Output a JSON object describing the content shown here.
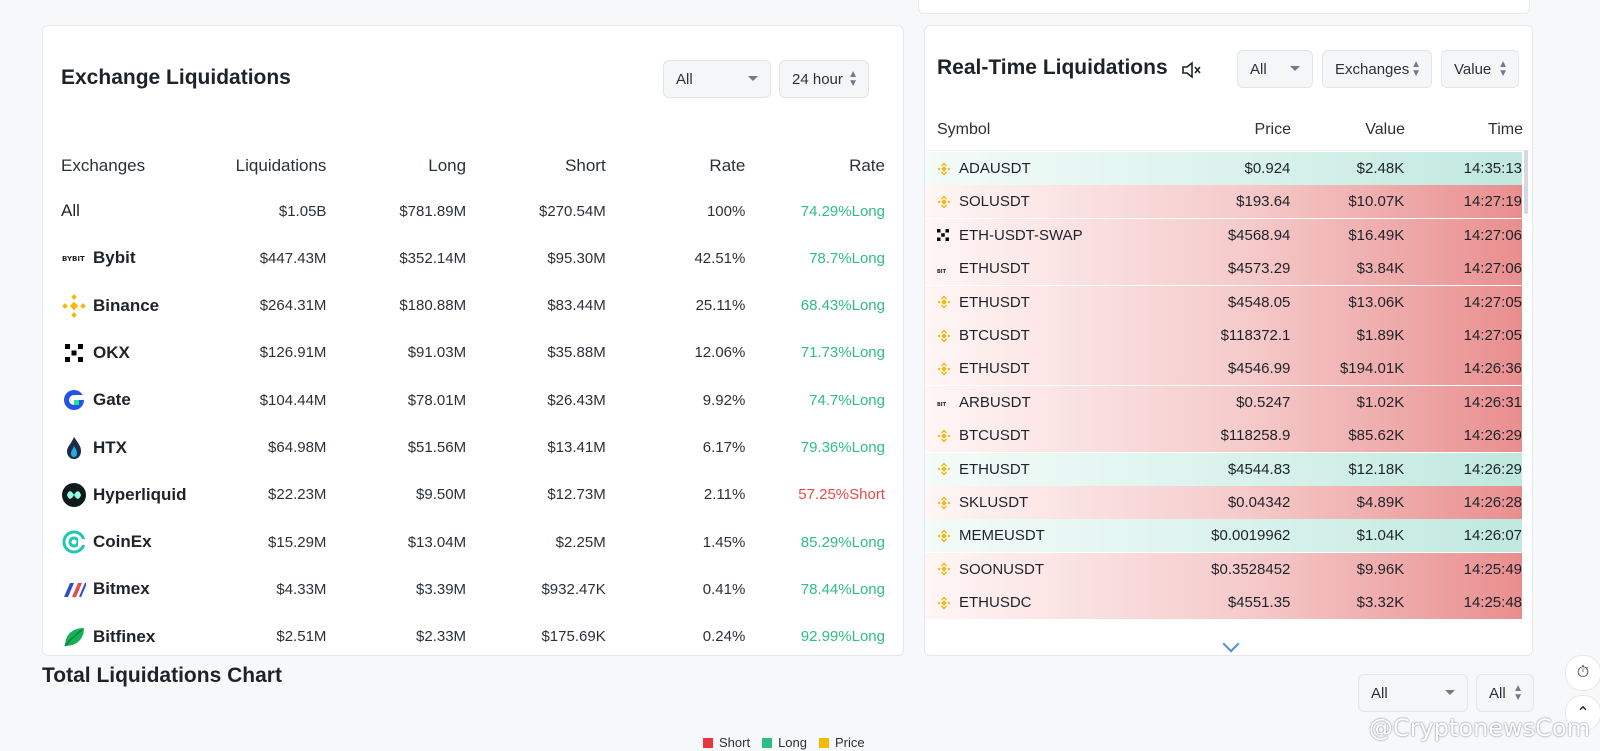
{
  "exchange": {
    "title": "Exchange Liquidations",
    "filter_value": "All",
    "period_value": "24 hour",
    "headers": [
      "Exchanges",
      "Liquidations",
      "Long",
      "Short",
      "Rate",
      "Rate"
    ],
    "rows": [
      {
        "name": "All",
        "liq": "$1.05B",
        "long": "$781.89M",
        "short": "$270.54M",
        "rate": "100%",
        "ratio": "74.29%Long",
        "side": "long",
        "logo": "none"
      },
      {
        "name": "Bybit",
        "liq": "$447.43M",
        "long": "$352.14M",
        "short": "$95.30M",
        "rate": "42.51%",
        "ratio": "78.7%Long",
        "side": "long",
        "logo": "bybit-logo"
      },
      {
        "name": "Binance",
        "liq": "$264.31M",
        "long": "$180.88M",
        "short": "$83.44M",
        "rate": "25.11%",
        "ratio": "68.43%Long",
        "side": "long",
        "logo": "binance-logo"
      },
      {
        "name": "OKX",
        "liq": "$126.91M",
        "long": "$91.03M",
        "short": "$35.88M",
        "rate": "12.06%",
        "ratio": "71.73%Long",
        "side": "long",
        "logo": "okx-logo"
      },
      {
        "name": "Gate",
        "liq": "$104.44M",
        "long": "$78.01M",
        "short": "$26.43M",
        "rate": "9.92%",
        "ratio": "74.7%Long",
        "side": "long",
        "logo": "gate-logo"
      },
      {
        "name": "HTX",
        "liq": "$64.98M",
        "long": "$51.56M",
        "short": "$13.41M",
        "rate": "6.17%",
        "ratio": "79.36%Long",
        "side": "long",
        "logo": "htx-logo"
      },
      {
        "name": "Hyperliquid",
        "liq": "$22.23M",
        "long": "$9.50M",
        "short": "$12.73M",
        "rate": "2.11%",
        "ratio": "57.25%Short",
        "side": "short",
        "logo": "hyperliquid-logo"
      },
      {
        "name": "CoinEx",
        "liq": "$15.29M",
        "long": "$13.04M",
        "short": "$2.25M",
        "rate": "1.45%",
        "ratio": "85.29%Long",
        "side": "long",
        "logo": "coinex-logo"
      },
      {
        "name": "Bitmex",
        "liq": "$4.33M",
        "long": "$3.39M",
        "short": "$932.47K",
        "rate": "0.41%",
        "ratio": "78.44%Long",
        "side": "long",
        "logo": "bitmex-logo"
      },
      {
        "name": "Bitfinex",
        "liq": "$2.51M",
        "long": "$2.33M",
        "short": "$175.69K",
        "rate": "0.24%",
        "ratio": "92.99%Long",
        "side": "long",
        "logo": "bitfinex-logo"
      }
    ]
  },
  "realtime": {
    "title": "Real-Time Liquidations",
    "filter_value": "All",
    "exchanges_label": "Exchanges",
    "value_label": "Value",
    "headers": [
      "Symbol",
      "Price",
      "Value",
      "Time"
    ],
    "rows": [
      {
        "symbol": "ADAUSDT",
        "price": "$0.924",
        "value": "$2.48K",
        "time": "14:35:13",
        "side": "long",
        "icon": "binance-icon"
      },
      {
        "symbol": "SOLUSDT",
        "price": "$193.64",
        "value": "$10.07K",
        "time": "14:27:19",
        "side": "short",
        "icon": "binance-icon"
      },
      {
        "symbol": "ETH-USDT-SWAP",
        "price": "$4568.94",
        "value": "$16.49K",
        "time": "14:27:06",
        "side": "short",
        "icon": "okx-icon"
      },
      {
        "symbol": "ETHUSDT",
        "price": "$4573.29",
        "value": "$3.84K",
        "time": "14:27:06",
        "side": "short",
        "icon": "bybit-icon"
      },
      {
        "symbol": "ETHUSDT",
        "price": "$4548.05",
        "value": "$13.06K",
        "time": "14:27:05",
        "side": "short",
        "icon": "binance-icon"
      },
      {
        "symbol": "BTCUSDT",
        "price": "$118372.1",
        "value": "$1.89K",
        "time": "14:27:05",
        "side": "short",
        "icon": "binance-icon"
      },
      {
        "symbol": "ETHUSDT",
        "price": "$4546.99",
        "value": "$194.01K",
        "time": "14:26:36",
        "side": "short",
        "icon": "binance-icon"
      },
      {
        "symbol": "ARBUSDT",
        "price": "$0.5247",
        "value": "$1.02K",
        "time": "14:26:31",
        "side": "short",
        "icon": "bybit-icon"
      },
      {
        "symbol": "BTCUSDT",
        "price": "$118258.9",
        "value": "$85.62K",
        "time": "14:26:29",
        "side": "short",
        "icon": "binance-icon"
      },
      {
        "symbol": "ETHUSDT",
        "price": "$4544.83",
        "value": "$12.18K",
        "time": "14:26:29",
        "side": "long",
        "icon": "binance-icon"
      },
      {
        "symbol": "SKLUSDT",
        "price": "$0.04342",
        "value": "$4.89K",
        "time": "14:26:28",
        "side": "short",
        "icon": "binance-icon"
      },
      {
        "symbol": "MEMEUSDT",
        "price": "$0.0019962",
        "value": "$1.04K",
        "time": "14:26:07",
        "side": "long",
        "icon": "binance-icon"
      },
      {
        "symbol": "SOONUSDT",
        "price": "$0.3528452",
        "value": "$9.96K",
        "time": "14:25:49",
        "side": "short",
        "icon": "binance-icon"
      },
      {
        "symbol": "ETHUSDC",
        "price": "$4551.35",
        "value": "$3.32K",
        "time": "14:25:48",
        "side": "short",
        "icon": "binance-icon"
      }
    ]
  },
  "total_chart": {
    "title": "Total Liquidations Chart",
    "filter1": "All",
    "filter2": "All",
    "legend": [
      {
        "label": "Short",
        "color": "#e8383d"
      },
      {
        "label": "Long",
        "color": "#2ebd85"
      },
      {
        "label": "Price",
        "color": "#f0b90b"
      }
    ]
  },
  "watermark": "@CryptonewsCom",
  "colors": {
    "long": "#2ebd85",
    "short": "#e84a4a",
    "binance": "#f0b90b"
  }
}
